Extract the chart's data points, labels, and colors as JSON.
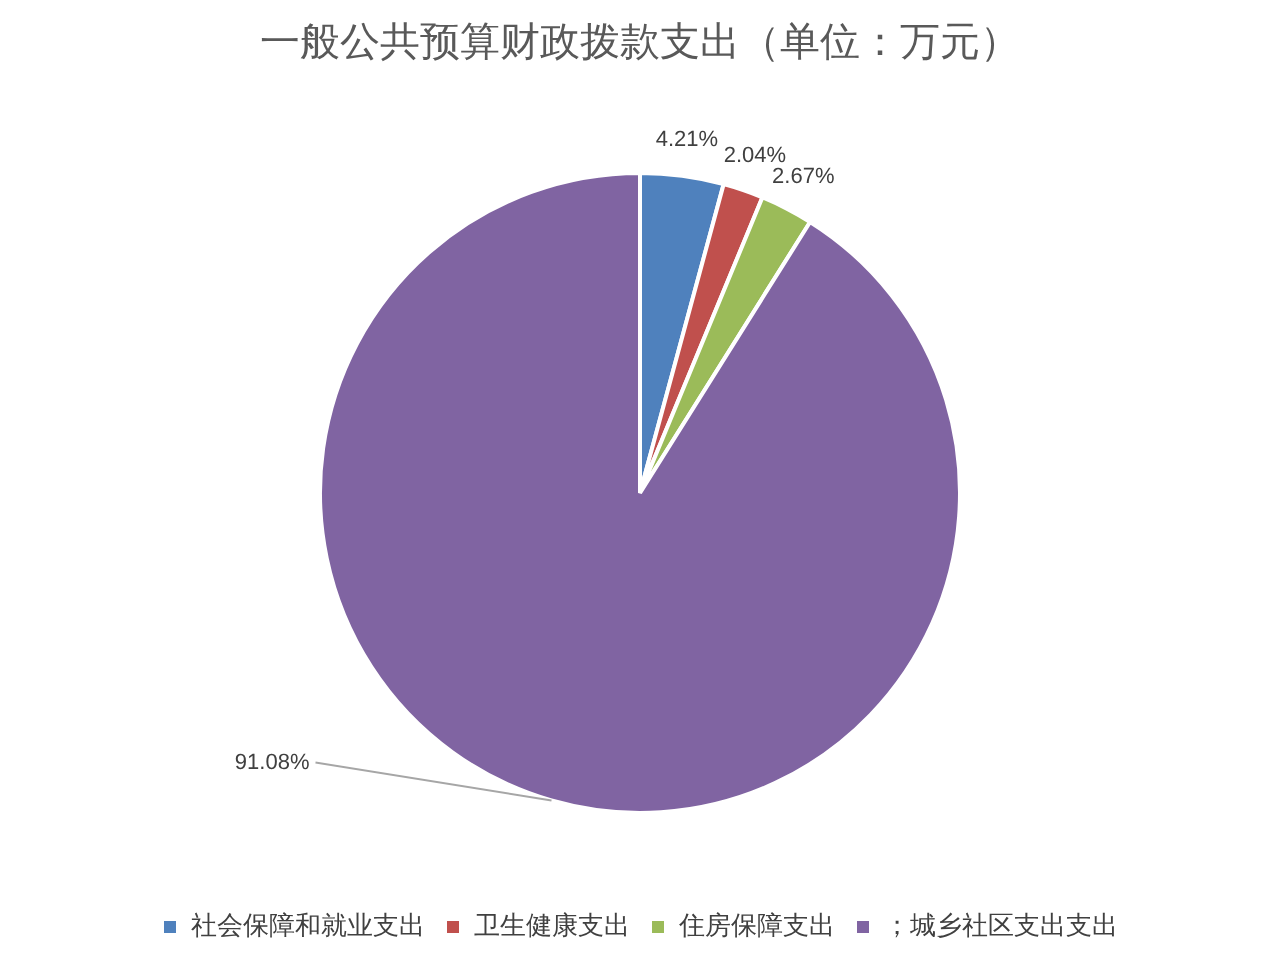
{
  "chart_data": {
    "type": "pie",
    "title": "一般公共预算财政拨款支出（单位：万元）",
    "categories": [
      "社会保障和就业支出",
      "卫生健康支出",
      "住房保障支出",
      "；城乡社区支出支出"
    ],
    "values": [
      4.21,
      2.04,
      2.67,
      91.08
    ],
    "colors": [
      "#4f81bd",
      "#c0504d",
      "#9bbb59",
      "#8064a2"
    ],
    "value_labels": [
      "4.21%",
      "2.04%",
      "2.67%",
      "91.08%"
    ],
    "legend": "bottom"
  }
}
